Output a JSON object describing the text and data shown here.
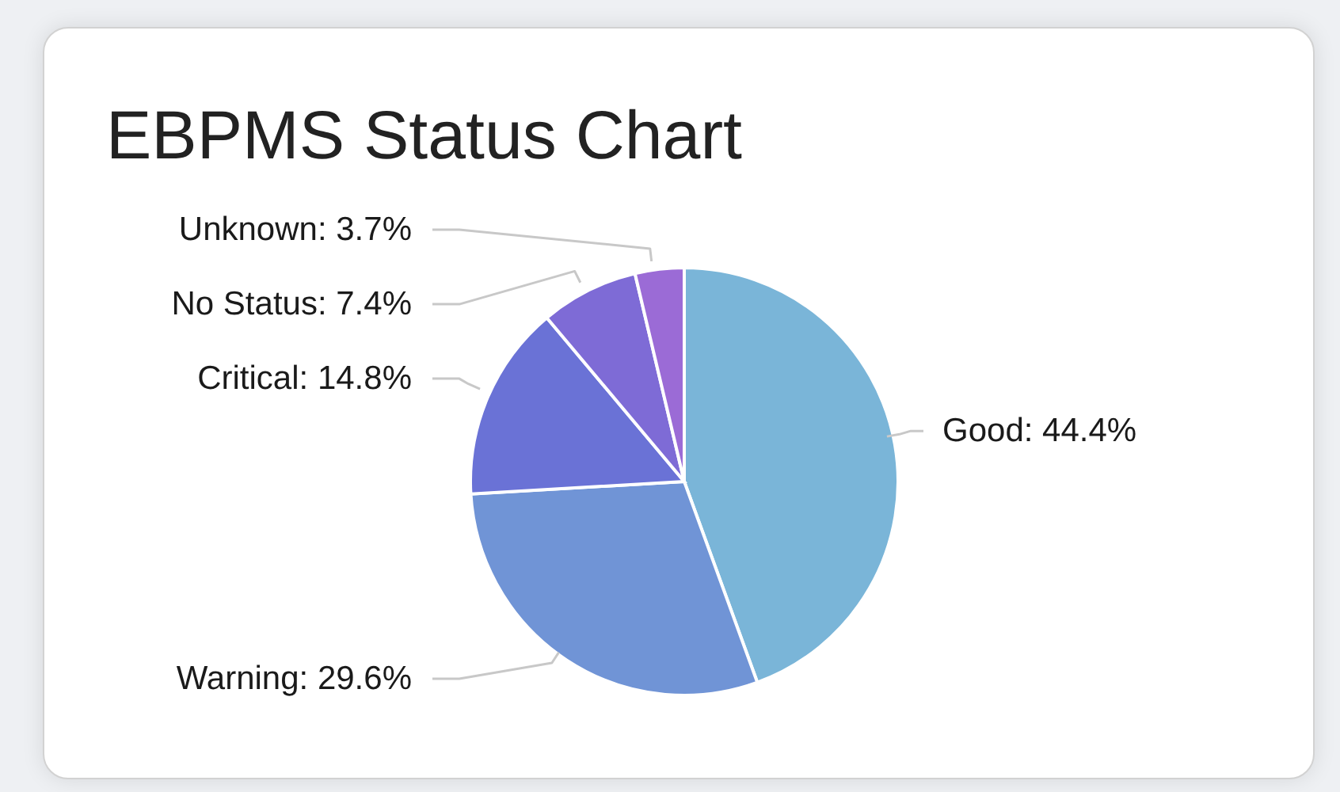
{
  "chart_data": {
    "type": "pie",
    "title": "EBPMS Status Chart",
    "categories": [
      "Good",
      "Warning",
      "Critical",
      "No Status",
      "Unknown"
    ],
    "values": [
      44.4,
      29.6,
      14.8,
      7.4,
      3.7
    ],
    "value_labels": [
      "44.4%",
      "29.6%",
      "14.8%",
      "7.4%",
      "3.7%"
    ],
    "colors": [
      "#7ab5d8",
      "#7094d6",
      "#6a72d6",
      "#7e6bd6",
      "#9b6bd6"
    ]
  }
}
